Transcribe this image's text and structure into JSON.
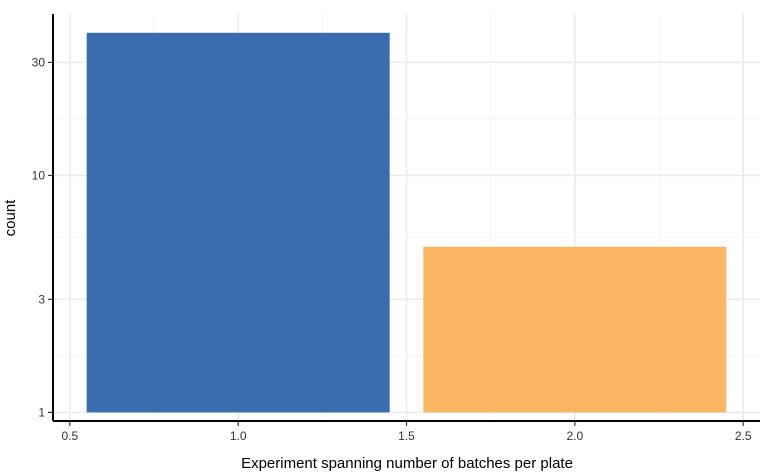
{
  "chart_data": {
    "type": "bar",
    "xlabel": "Experiment spanning number of batches per plate",
    "ylabel": "count",
    "x_scale": "linear",
    "y_scale": "log10",
    "xlim": [
      0.45,
      2.55
    ],
    "ylim": [
      0.92,
      48
    ],
    "x_ticks": [
      0.5,
      1.0,
      1.5,
      2.0,
      2.5
    ],
    "x_tick_labels": [
      "0.5",
      "1.0",
      "1.5",
      "2.0",
      "2.5"
    ],
    "y_ticks": [
      1,
      3,
      10,
      30
    ],
    "y_tick_labels": [
      "1",
      "3",
      "10",
      "30"
    ],
    "bar_width": 0.9,
    "baseline": 1,
    "bars": [
      {
        "x": 1,
        "value": 40,
        "color": "#3A6DAF"
      },
      {
        "x": 2,
        "value": 5,
        "color": "#FBB563"
      }
    ],
    "grid": true,
    "legend": "none"
  }
}
